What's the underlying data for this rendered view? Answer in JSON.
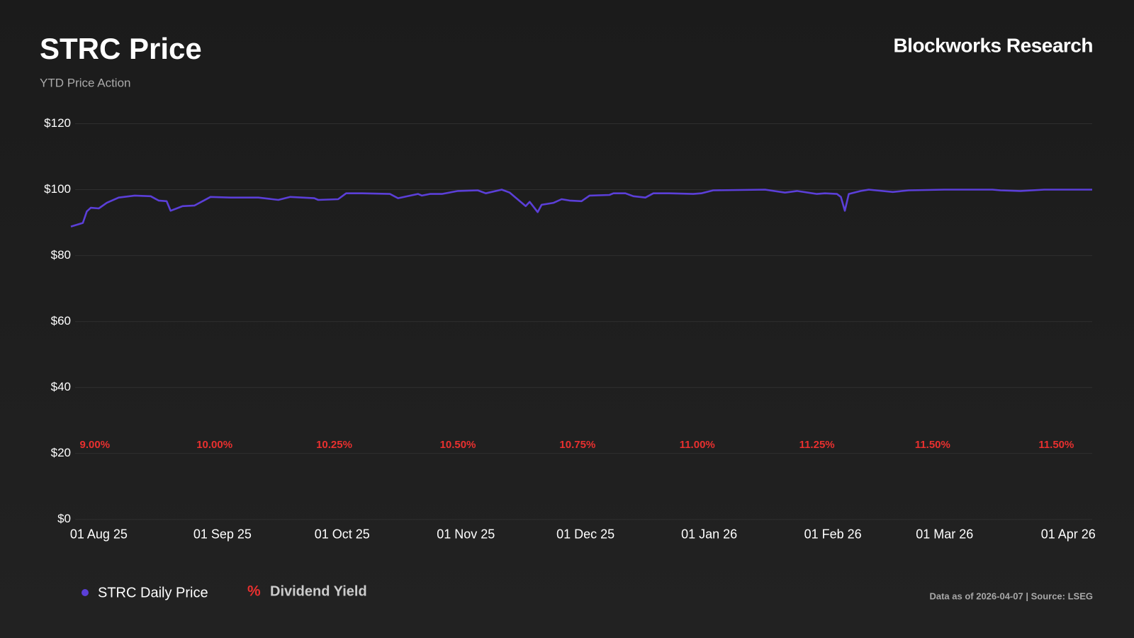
{
  "chart_data": {
    "type": "line",
    "title": "STRC Price",
    "subtitle": "YTD Price Action",
    "brand": "Blockworks Research",
    "footnote": "Data as of 2026-04-07 | Source: LSEG",
    "x": [
      "2025-07-25",
      "2025-07-28",
      "2025-07-29",
      "2025-07-30",
      "2025-08-01",
      "2025-08-03",
      "2025-08-06",
      "2025-08-10",
      "2025-08-14",
      "2025-08-16",
      "2025-08-18",
      "2025-08-19",
      "2025-08-22",
      "2025-08-25",
      "2025-08-29",
      "2025-09-03",
      "2025-09-10",
      "2025-09-15",
      "2025-09-18",
      "2025-09-24",
      "2025-09-25",
      "2025-09-30",
      "2025-10-02",
      "2025-10-06",
      "2025-10-13",
      "2025-10-15",
      "2025-10-20",
      "2025-10-21",
      "2025-10-23",
      "2025-10-26",
      "2025-10-30",
      "2025-11-04",
      "2025-11-06",
      "2025-11-10",
      "2025-11-12",
      "2025-11-16",
      "2025-11-17",
      "2025-11-19",
      "2025-11-20",
      "2025-11-23",
      "2025-11-25",
      "2025-11-27",
      "2025-11-30",
      "2025-12-02",
      "2025-12-07",
      "2025-12-08",
      "2025-12-11",
      "2025-12-13",
      "2025-12-16",
      "2025-12-18",
      "2025-12-22",
      "2025-12-28",
      "2025-12-30",
      "2026-01-02",
      "2026-01-15",
      "2026-01-20",
      "2026-01-23",
      "2026-01-28",
      "2026-01-30",
      "2026-02-02",
      "2026-02-03",
      "2026-02-04",
      "2026-02-05",
      "2026-02-08",
      "2026-02-10",
      "2026-02-16",
      "2026-02-20",
      "2026-03-01",
      "2026-03-13",
      "2026-03-15",
      "2026-03-20",
      "2026-03-26",
      "2026-04-07"
    ],
    "series": [
      {
        "name": "STRC Daily Price",
        "color": "#5b3fd8",
        "values": [
          88.8,
          89.9,
          93.4,
          94.5,
          94.3,
          96.0,
          97.6,
          98.2,
          98.0,
          96.7,
          96.5,
          93.6,
          95.0,
          95.2,
          97.8,
          97.6,
          97.6,
          96.9,
          97.8,
          97.4,
          96.9,
          97.1,
          98.9,
          98.9,
          98.7,
          97.4,
          98.7,
          98.2,
          98.7,
          98.7,
          99.6,
          99.8,
          98.9,
          100.0,
          99.1,
          95.0,
          96.3,
          93.2,
          95.4,
          96.0,
          97.1,
          96.7,
          96.5,
          98.2,
          98.4,
          98.9,
          98.9,
          98.0,
          97.6,
          98.9,
          98.9,
          98.7,
          98.9,
          99.8,
          100.0,
          99.1,
          99.6,
          98.7,
          98.9,
          98.7,
          97.8,
          93.6,
          98.7,
          99.6,
          100.0,
          99.3,
          99.8,
          100.0,
          100.0,
          99.8,
          99.6,
          100.0,
          100.0
        ]
      }
    ],
    "xlim": [
      "2025-07-25",
      "2026-04-07"
    ],
    "xticks": [
      {
        "value": "2025-08-01",
        "label": "01 Aug 25"
      },
      {
        "value": "2025-09-01",
        "label": "01 Sep 25"
      },
      {
        "value": "2025-10-01",
        "label": "01 Oct 25"
      },
      {
        "value": "2025-11-01",
        "label": "01 Nov 25"
      },
      {
        "value": "2025-12-01",
        "label": "01 Dec 25"
      },
      {
        "value": "2026-01-01",
        "label": "01 Jan 26"
      },
      {
        "value": "2026-02-01",
        "label": "01 Feb 26"
      },
      {
        "value": "2026-03-01",
        "label": "01 Mar 26"
      },
      {
        "value": "2026-04-01",
        "label": "01 Apr 26"
      }
    ],
    "ylim": [
      0,
      120
    ],
    "yticks": [
      {
        "value": 0,
        "label": "$0"
      },
      {
        "value": 20,
        "label": "$20"
      },
      {
        "value": 40,
        "label": "$40"
      },
      {
        "value": 60,
        "label": "$60"
      },
      {
        "value": 80,
        "label": "$80"
      },
      {
        "value": 100,
        "label": "$100"
      },
      {
        "value": 120,
        "label": "$120"
      }
    ],
    "grid": true,
    "annotations": {
      "name": "Dividend Yield",
      "symbol": "%",
      "color": "#e8302f",
      "points": [
        {
          "x": "2025-07-31",
          "label": "9.00%"
        },
        {
          "x": "2025-08-30",
          "label": "10.00%"
        },
        {
          "x": "2025-09-29",
          "label": "10.25%"
        },
        {
          "x": "2025-10-30",
          "label": "10.50%"
        },
        {
          "x": "2025-11-29",
          "label": "10.75%"
        },
        {
          "x": "2025-12-29",
          "label": "11.00%"
        },
        {
          "x": "2026-01-28",
          "label": "11.25%"
        },
        {
          "x": "2026-02-26",
          "label": "11.50%"
        },
        {
          "x": "2026-03-29",
          "label": "11.50%"
        }
      ]
    }
  }
}
